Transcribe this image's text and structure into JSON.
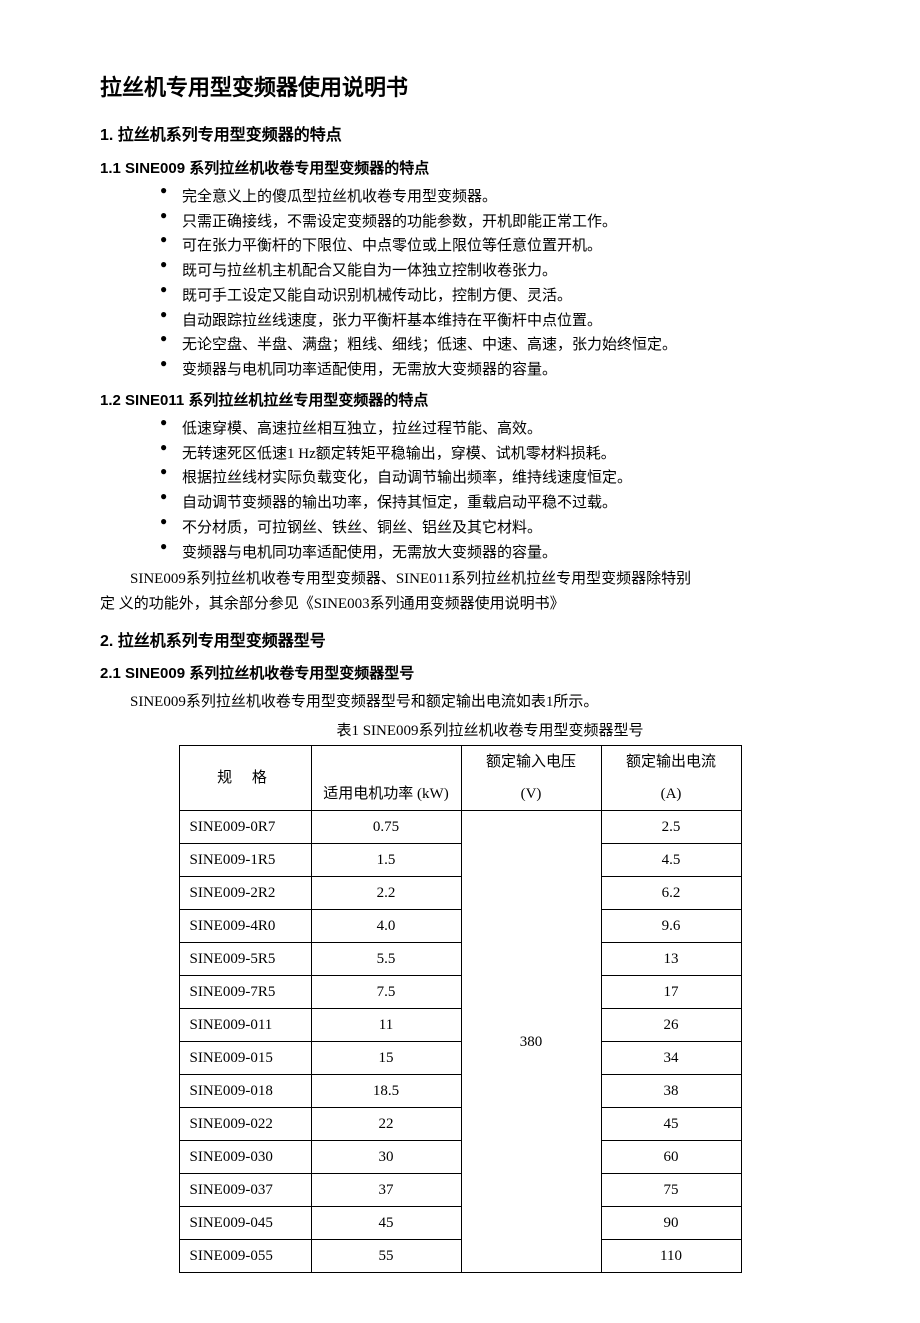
{
  "title": "拉丝机专用型变频器使用说明书",
  "section1": {
    "heading": "1.  拉丝机系列专用型变频器的特点",
    "sub1": {
      "heading": "1.1 SINE009 系列拉丝机收卷专用型变频器的特点",
      "items": [
        "完全意义上的傻瓜型拉丝机收卷专用型变频器。",
        "只需正确接线，不需设定变频器的功能参数，开机即能正常工作。",
        "可在张力平衡杆的下限位、中点零位或上限位等任意位置开机。",
        "既可与拉丝机主机配合又能自为一体独立控制收卷张力。",
        "既可手工设定又能自动识别机械传动比，控制方便、灵活。",
        "自动跟踪拉丝线速度，张力平衡杆基本维持在平衡杆中点位置。",
        "无论空盘、半盘、满盘；粗线、细线；低速、中速、高速，张力始终恒定。",
        "变频器与电机同功率适配使用，无需放大变频器的容量。"
      ]
    },
    "sub2": {
      "heading": "1.2 SINE011 系列拉丝机拉丝专用型变频器的特点",
      "items": [
        "低速穿模、高速拉丝相互独立，拉丝过程节能、高效。",
        "无转速死区低速1 Hz额定转矩平稳输出，穿模、试机零材料损耗。",
        "根据拉丝线材实际负载变化，自动调节输出频率，维持线速度恒定。",
        "自动调节变频器的输出功率，保持其恒定，重载启动平稳不过载。",
        "不分材质，可拉钢丝、铁丝、铜丝、铝丝及其它材料。",
        "变频器与电机同功率适配使用，无需放大变频器的容量。"
      ],
      "note1": "SINE009系列拉丝机收卷专用型变频器、SINE011系列拉丝机拉丝专用型变频器除特别",
      "note2": "定 义的功能外，其余部分参见《SINE003系列通用变频器使用说明书》"
    }
  },
  "section2": {
    "heading": "2.  拉丝机系列专用型变频器型号",
    "sub1": {
      "heading": "2.1 SINE009 系列拉丝机收卷专用型变频器型号",
      "intro": "SINE009系列拉丝机收卷专用型变频器型号和额定输出电流如表1所示。",
      "caption": "表1 SINE009系列拉丝机收卷专用型变频器型号"
    }
  },
  "table": {
    "headers": {
      "spec": "规 格",
      "power": "适用电机功率 (kW)",
      "voltage_l1": "额定输入电压",
      "voltage_l2": "(V)",
      "current_l1": "额定输出电流",
      "current_l2": "(A)"
    },
    "voltage_value": "380",
    "rows": [
      {
        "spec": "SINE009-0R7",
        "power": "0.75",
        "current": "2.5"
      },
      {
        "spec": "SINE009-1R5",
        "power": "1.5",
        "current": "4.5"
      },
      {
        "spec": "SINE009-2R2",
        "power": "2.2",
        "current": "6.2"
      },
      {
        "spec": "SINE009-4R0",
        "power": "4.0",
        "current": "9.6"
      },
      {
        "spec": "SINE009-5R5",
        "power": "5.5",
        "current": "13"
      },
      {
        "spec": "SINE009-7R5",
        "power": "7.5",
        "current": "17"
      },
      {
        "spec": "SINE009-011",
        "power": "11",
        "current": "26"
      },
      {
        "spec": "SINE009-015",
        "power": "15",
        "current": "34"
      },
      {
        "spec": "SINE009-018",
        "power": "18.5",
        "current": "38"
      },
      {
        "spec": "SINE009-022",
        "power": "22",
        "current": "45"
      },
      {
        "spec": "SINE009-030",
        "power": "30",
        "current": "60"
      },
      {
        "spec": "SINE009-037",
        "power": "37",
        "current": "75"
      },
      {
        "spec": "SINE009-045",
        "power": "45",
        "current": "90"
      },
      {
        "spec": "SINE009-055",
        "power": "55",
        "current": "110"
      }
    ]
  }
}
